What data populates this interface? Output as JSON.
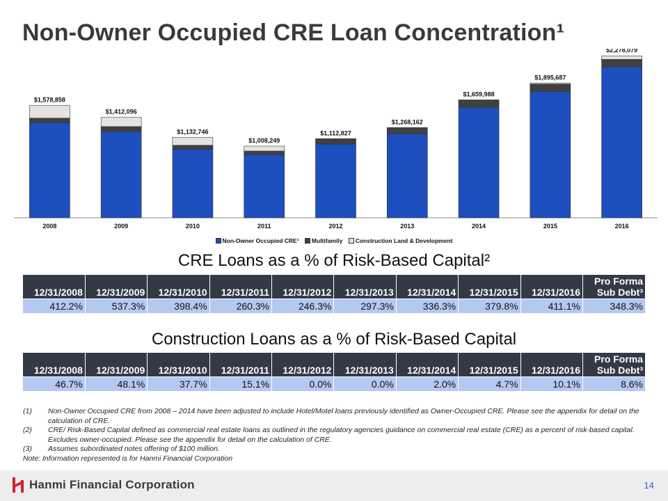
{
  "page": {
    "title": "Non-Owner Occupied CRE Loan Concentration¹",
    "page_number": "14",
    "company": "Hanmi Financial Corporation"
  },
  "chart_data": {
    "type": "bar",
    "stacked": true,
    "categories": [
      "2008",
      "2009",
      "2010",
      "2011",
      "2012",
      "2013",
      "2014",
      "2015",
      "2016"
    ],
    "totals": [
      "$1,578,858",
      "$1,412,096",
      "$1,132,746",
      "$1,008,249",
      "$1,112,827",
      "$1,268,162",
      "$1,659,988",
      "$1,895,687",
      "$2,278,079"
    ],
    "series": [
      {
        "name": "Non-Owner Occupied CRE¹",
        "color": "#1d4fbf",
        "values": [
          1337000,
          1213000,
          962000,
          887000,
          1037000,
          1183000,
          1555000,
          1778000,
          2123000
        ]
      },
      {
        "name": "Multifamily",
        "color": "#404040",
        "values": [
          65000,
          70000,
          58000,
          52000,
          75000,
          85000,
          98000,
          102000,
          105000
        ]
      },
      {
        "name": "Construction Land & Development",
        "color": "#e3e3e3",
        "values": [
          176858,
          129096,
          112746,
          69249,
          827,
          162,
          6988,
          15687,
          50079
        ]
      }
    ],
    "ylim": [
      0,
      2300000
    ],
    "grid": false,
    "legend": "bottom"
  },
  "cre_table": {
    "title": "CRE Loans as a % of Risk-Based Capital²",
    "headers": [
      {
        "top": "",
        "bottom": "12/31/2008"
      },
      {
        "top": "",
        "bottom": "12/31/2009"
      },
      {
        "top": "",
        "bottom": "12/31/2010"
      },
      {
        "top": "",
        "bottom": "12/31/2011"
      },
      {
        "top": "",
        "bottom": "12/31/2012"
      },
      {
        "top": "",
        "bottom": "12/31/2013"
      },
      {
        "top": "",
        "bottom": "12/31/2014"
      },
      {
        "top": "",
        "bottom": "12/31/2015"
      },
      {
        "top": "",
        "bottom": "12/31/2016"
      },
      {
        "top": "Pro Forma",
        "bottom": "Sub Debt³"
      }
    ],
    "values": [
      "412.2%",
      "537.3%",
      "398.4%",
      "260.3%",
      "246.3%",
      "297.3%",
      "336.3%",
      "379.8%",
      "411.1%",
      "348.3%"
    ]
  },
  "construction_table": {
    "title": "Construction Loans as a % of Risk-Based Capital",
    "headers": [
      {
        "top": "",
        "bottom": "12/31/2008"
      },
      {
        "top": "",
        "bottom": "12/31/2009"
      },
      {
        "top": "",
        "bottom": "12/31/2010"
      },
      {
        "top": "",
        "bottom": "12/31/2011"
      },
      {
        "top": "",
        "bottom": "12/31/2012"
      },
      {
        "top": "",
        "bottom": "12/31/2013"
      },
      {
        "top": "",
        "bottom": "12/31/2014"
      },
      {
        "top": "",
        "bottom": "12/31/2015"
      },
      {
        "top": "",
        "bottom": "12/31/2016"
      },
      {
        "top": "Pro Forma",
        "bottom": "Sub Debt³"
      }
    ],
    "values": [
      "46.7%",
      "48.1%",
      "37.7%",
      "15.1%",
      "0.0%",
      "0.0%",
      "2.0%",
      "4.7%",
      "10.1%",
      "8.6%"
    ]
  },
  "footnotes": [
    {
      "num": "(1)",
      "text": "Non-Owner Occupied CRE from 2008 – 2014 have been adjusted to include Hotel/Motel loans previously identified as Owner-Occupied CRE. Please see the appendix for detail on the calculation of CRE."
    },
    {
      "num": "(2)",
      "text": "CRE/ Risk-Based Capital defined as commercial real estate loans as outlined in the regulatory agencies guidance on commercial real estate (CRE) as a percent of risk-based capital. Excludes owner-occupied. Please see the appendix for detail on the calculation of CRE."
    },
    {
      "num": "(3)",
      "text": "Assumes subordinated notes offering of $100 million."
    }
  ],
  "note": "Note: Information represented is for Hanmi Financial Corporation",
  "colors": {
    "bar_primary": "#1d4fbf",
    "bar_multifamily": "#404040",
    "bar_construction": "#e3e3e3",
    "table_header": "#333a46",
    "table_cell": "#b4c8f2",
    "logo_red": "#d0202e",
    "page_number": "#3b62c4"
  }
}
